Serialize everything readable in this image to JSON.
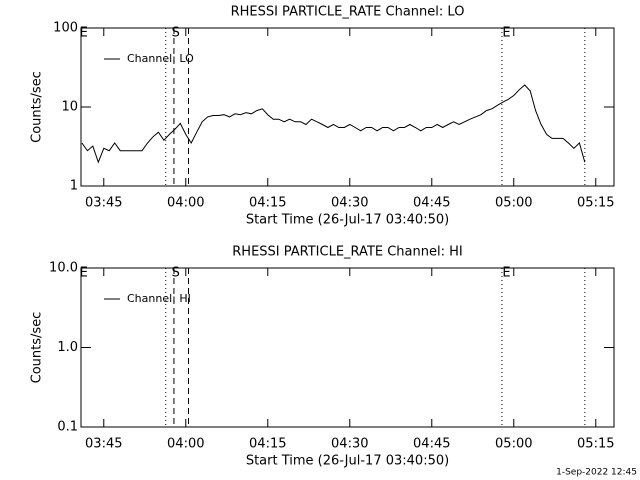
{
  "chart_data": [
    {
      "type": "line",
      "title": "RHESSI PARTICLE_RATE Channel: LO",
      "x_label": "Start Time (26-Jul-17 03:40:50)",
      "y_label": "Counts/sec",
      "log_y": true,
      "xlim": [
        "03:40:50",
        "05:18:20"
      ],
      "xticks": [
        "03:45",
        "04:00",
        "04:15",
        "04:30",
        "04:45",
        "05:00",
        "05:15"
      ],
      "ylim": [
        1,
        100
      ],
      "yticks": [
        1,
        10,
        100
      ],
      "legend": "upper left",
      "markers": [
        {
          "x": "03:56:20",
          "style": "dotted"
        },
        {
          "x": "03:57:50",
          "style": "dashed"
        },
        {
          "x": "04:00:30",
          "style": "dashed"
        },
        {
          "x": "04:57:50",
          "style": "dotted"
        },
        {
          "x": "05:13:00",
          "style": "dotted"
        }
      ],
      "annotations": [
        {
          "x": "03:41:20",
          "text": "E"
        },
        {
          "x": "03:58:10",
          "text": "S"
        },
        {
          "x": "04:58:40",
          "text": "E"
        }
      ],
      "x": [
        "03:41",
        "03:42",
        "03:43",
        "03:44",
        "03:45",
        "03:46",
        "03:47",
        "03:48",
        "03:49",
        "03:50",
        "03:51",
        "03:52",
        "03:53",
        "03:54",
        "03:55",
        "03:56",
        "03:57",
        "03:58",
        "03:59",
        "04:00",
        "04:01",
        "04:02",
        "04:03",
        "04:04",
        "04:05",
        "04:06",
        "04:07",
        "04:08",
        "04:09",
        "04:10",
        "04:11",
        "04:12",
        "04:13",
        "04:14",
        "04:15",
        "04:16",
        "04:17",
        "04:18",
        "04:19",
        "04:20",
        "04:21",
        "04:22",
        "04:23",
        "04:24",
        "04:25",
        "04:26",
        "04:27",
        "04:28",
        "04:29",
        "04:30",
        "04:31",
        "04:32",
        "04:33",
        "04:34",
        "04:35",
        "04:36",
        "04:37",
        "04:38",
        "04:39",
        "04:40",
        "04:41",
        "04:42",
        "04:43",
        "04:44",
        "04:45",
        "04:46",
        "04:47",
        "04:48",
        "04:49",
        "04:50",
        "04:51",
        "04:52",
        "04:53",
        "04:54",
        "04:55",
        "04:56",
        "04:57",
        "04:58",
        "04:59",
        "05:00",
        "05:01",
        "05:02",
        "05:03",
        "05:04",
        "05:05",
        "05:06",
        "05:07",
        "05:08",
        "05:09",
        "05:10",
        "05:11",
        "05:12",
        "05:13"
      ],
      "series": [
        {
          "name": "Channel: LO",
          "color": "#000000",
          "values": [
            3.5,
            2.8,
            3.2,
            2.0,
            3.0,
            2.8,
            3.5,
            2.8,
            2.8,
            2.8,
            2.8,
            2.8,
            3.5,
            4.2,
            4.8,
            3.8,
            4.5,
            5.2,
            6.2,
            4.5,
            3.5,
            4.8,
            6.5,
            7.5,
            7.8,
            7.8,
            8.0,
            7.5,
            8.2,
            8.0,
            8.5,
            8.2,
            9.0,
            9.5,
            8.0,
            7.0,
            7.0,
            6.5,
            7.0,
            6.5,
            6.5,
            6.0,
            7.0,
            6.5,
            6.0,
            5.5,
            6.0,
            5.5,
            5.5,
            6.0,
            5.5,
            5.0,
            5.5,
            5.5,
            5.0,
            5.5,
            5.5,
            5.0,
            5.5,
            5.5,
            6.0,
            5.5,
            5.0,
            5.5,
            5.5,
            6.0,
            5.5,
            6.0,
            6.5,
            6.0,
            6.5,
            7.0,
            7.5,
            8.0,
            9.0,
            9.5,
            10.5,
            11.5,
            12.5,
            14.0,
            16.5,
            19.0,
            16.0,
            9.0,
            6.0,
            4.5,
            4.0,
            4.0,
            4.0,
            3.5,
            3.0,
            3.5,
            2.0
          ]
        }
      ]
    },
    {
      "type": "line",
      "title": "RHESSI PARTICLE_RATE Channel: HI",
      "x_label": "Start Time (26-Jul-17 03:40:50)",
      "y_label": "Counts/sec",
      "log_y": true,
      "xlim": [
        "03:40:50",
        "05:18:20"
      ],
      "xticks": [
        "03:45",
        "04:00",
        "04:15",
        "04:30",
        "04:45",
        "05:00",
        "05:15"
      ],
      "ylim": [
        0.1,
        10
      ],
      "yticks": [
        {
          "value": 0.1,
          "label": "0.1"
        },
        {
          "value": 1,
          "label": "1.0"
        },
        {
          "value": 10,
          "label": "10.0"
        }
      ],
      "legend": "upper left",
      "markers": [
        {
          "x": "03:56:20",
          "style": "dotted"
        },
        {
          "x": "03:57:50",
          "style": "dashed"
        },
        {
          "x": "04:00:30",
          "style": "dashed"
        },
        {
          "x": "04:57:50",
          "style": "dotted"
        },
        {
          "x": "05:13:00",
          "style": "dotted"
        }
      ],
      "annotations": [
        {
          "x": "03:41:20",
          "text": "E"
        },
        {
          "x": "03:58:10",
          "text": "S"
        },
        {
          "x": "04:58:40",
          "text": "E"
        }
      ],
      "x": [],
      "series": [
        {
          "name": "Channel: HI",
          "color": "#000000",
          "values": []
        }
      ]
    }
  ],
  "footer": "1-Sep-2022 12:45"
}
